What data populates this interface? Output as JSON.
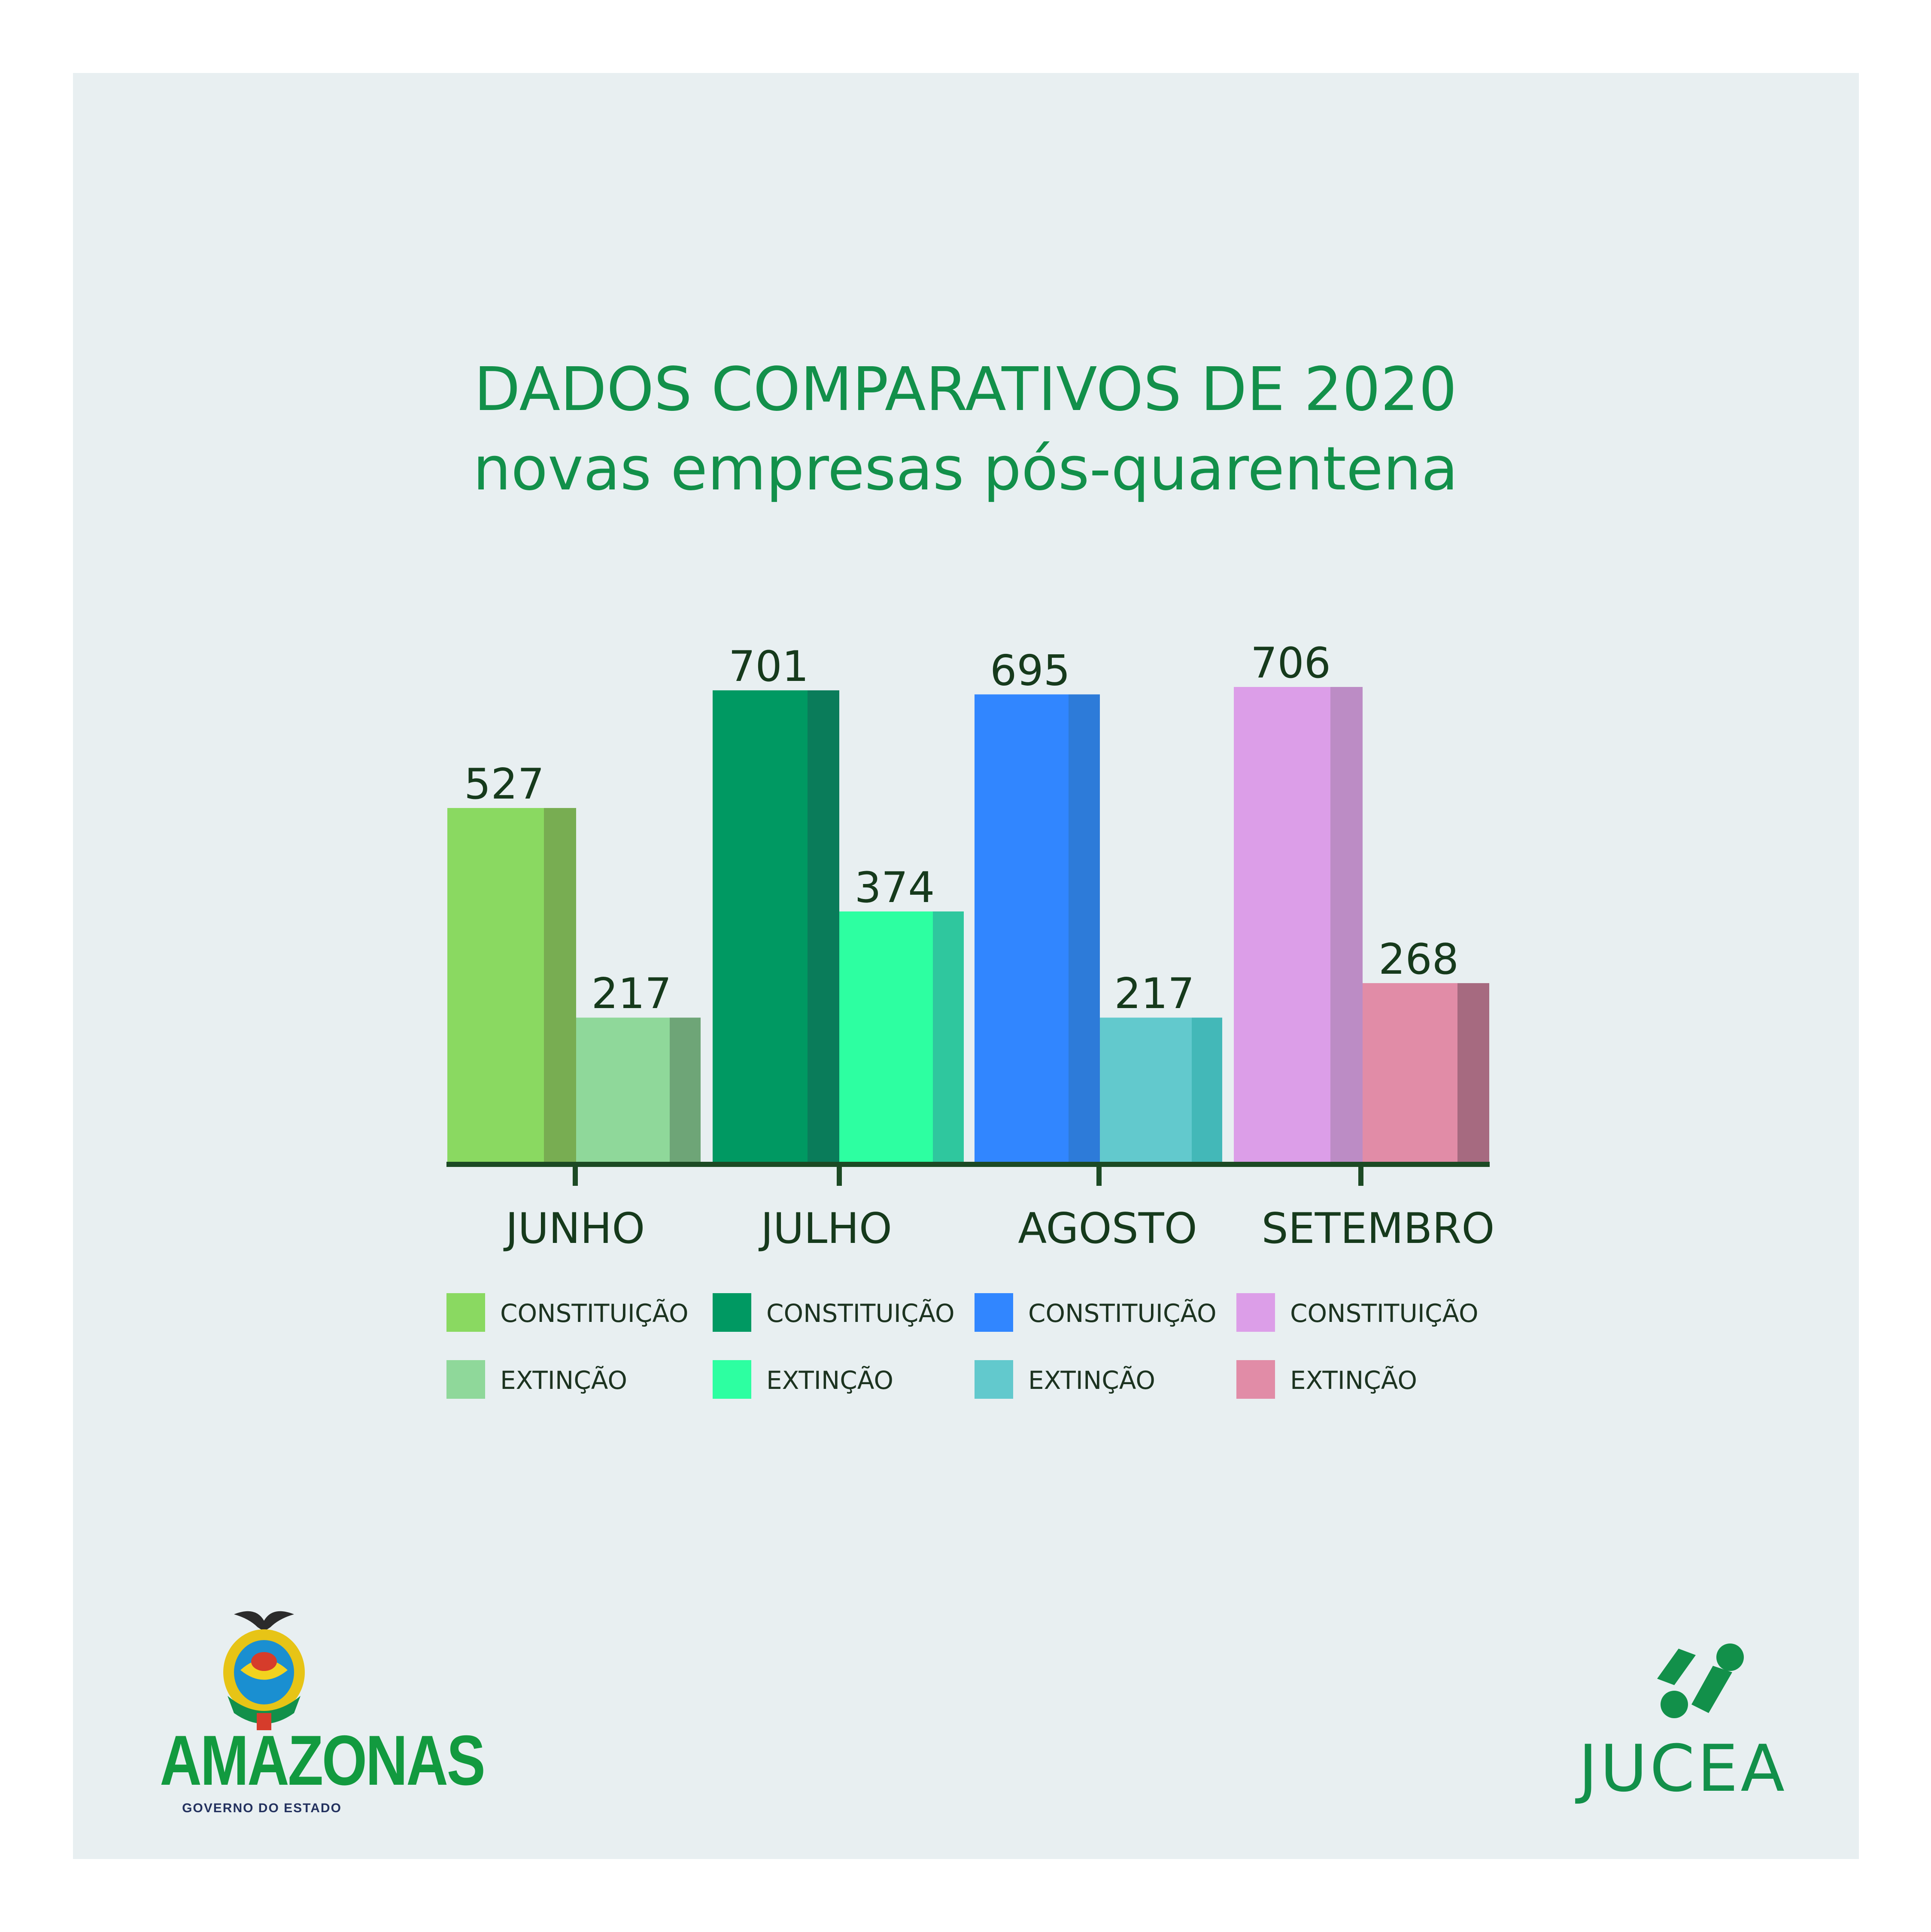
{
  "title": "DADOS COMPARATIVOS DE 2020",
  "subtitle": "novas empresas pós-quarentena",
  "chart_data": {
    "type": "bar",
    "categories": [
      "JUNHO",
      "JULHO",
      "AGOSTO",
      "SETEMBRO"
    ],
    "series": [
      {
        "name": "CONSTITUIÇÃO",
        "values": [
          527,
          701,
          695,
          706
        ]
      },
      {
        "name": "EXTINÇÃO",
        "values": [
          217,
          374,
          217,
          268
        ]
      }
    ],
    "colors": {
      "JUNHO": {
        "CONSTITUIÇÃO": [
          "#8ad961",
          "#78ad52"
        ],
        "EXTINÇÃO": [
          "#8fd89a",
          "#6ea577"
        ]
      },
      "JULHO": {
        "CONSTITUIÇÃO": [
          "#009962",
          "#0a7c5a"
        ],
        "EXTINÇÃO": [
          "#2dffa1",
          "#2fc79e"
        ]
      },
      "AGOSTO": {
        "CONSTITUIÇÃO": [
          "#3186ff",
          "#2d7bd9"
        ],
        "EXTINÇÃO": [
          "#62c9cd",
          "#43b8b8"
        ]
      },
      "SETEMBRO": {
        "CONSTITUIÇÃO": [
          "#dc9ee8",
          "#bc8cc5"
        ],
        "EXTINÇÃO": [
          "#e18ca7",
          "#a66a80"
        ]
      }
    },
    "legend_placement": "bottom",
    "grid": false
  },
  "legend": [
    {
      "month": "JUNHO",
      "constituicao": "CONSTITUIÇÃO",
      "extincao": "EXTINÇÃO"
    },
    {
      "month": "JULHO",
      "constituicao": "CONSTITUIÇÃO",
      "extincao": "EXTINÇÃO"
    },
    {
      "month": "AGOSTO",
      "constituicao": "CONSTITUIÇÃO",
      "extincao": "EXTINÇÃO"
    },
    {
      "month": "SETEMBRO",
      "constituicao": "CONSTITUIÇÃO",
      "extincao": "EXTINÇÃO"
    }
  ],
  "logos": {
    "amazonas": "AMAZONAS",
    "amazonas_sub": "GOVERNO DO ESTADO",
    "jucea": "JUCEA"
  },
  "icons": {
    "amazonas": "amazonas-coat-of-arms-icon",
    "jucea": "jucea-logo-icon"
  }
}
